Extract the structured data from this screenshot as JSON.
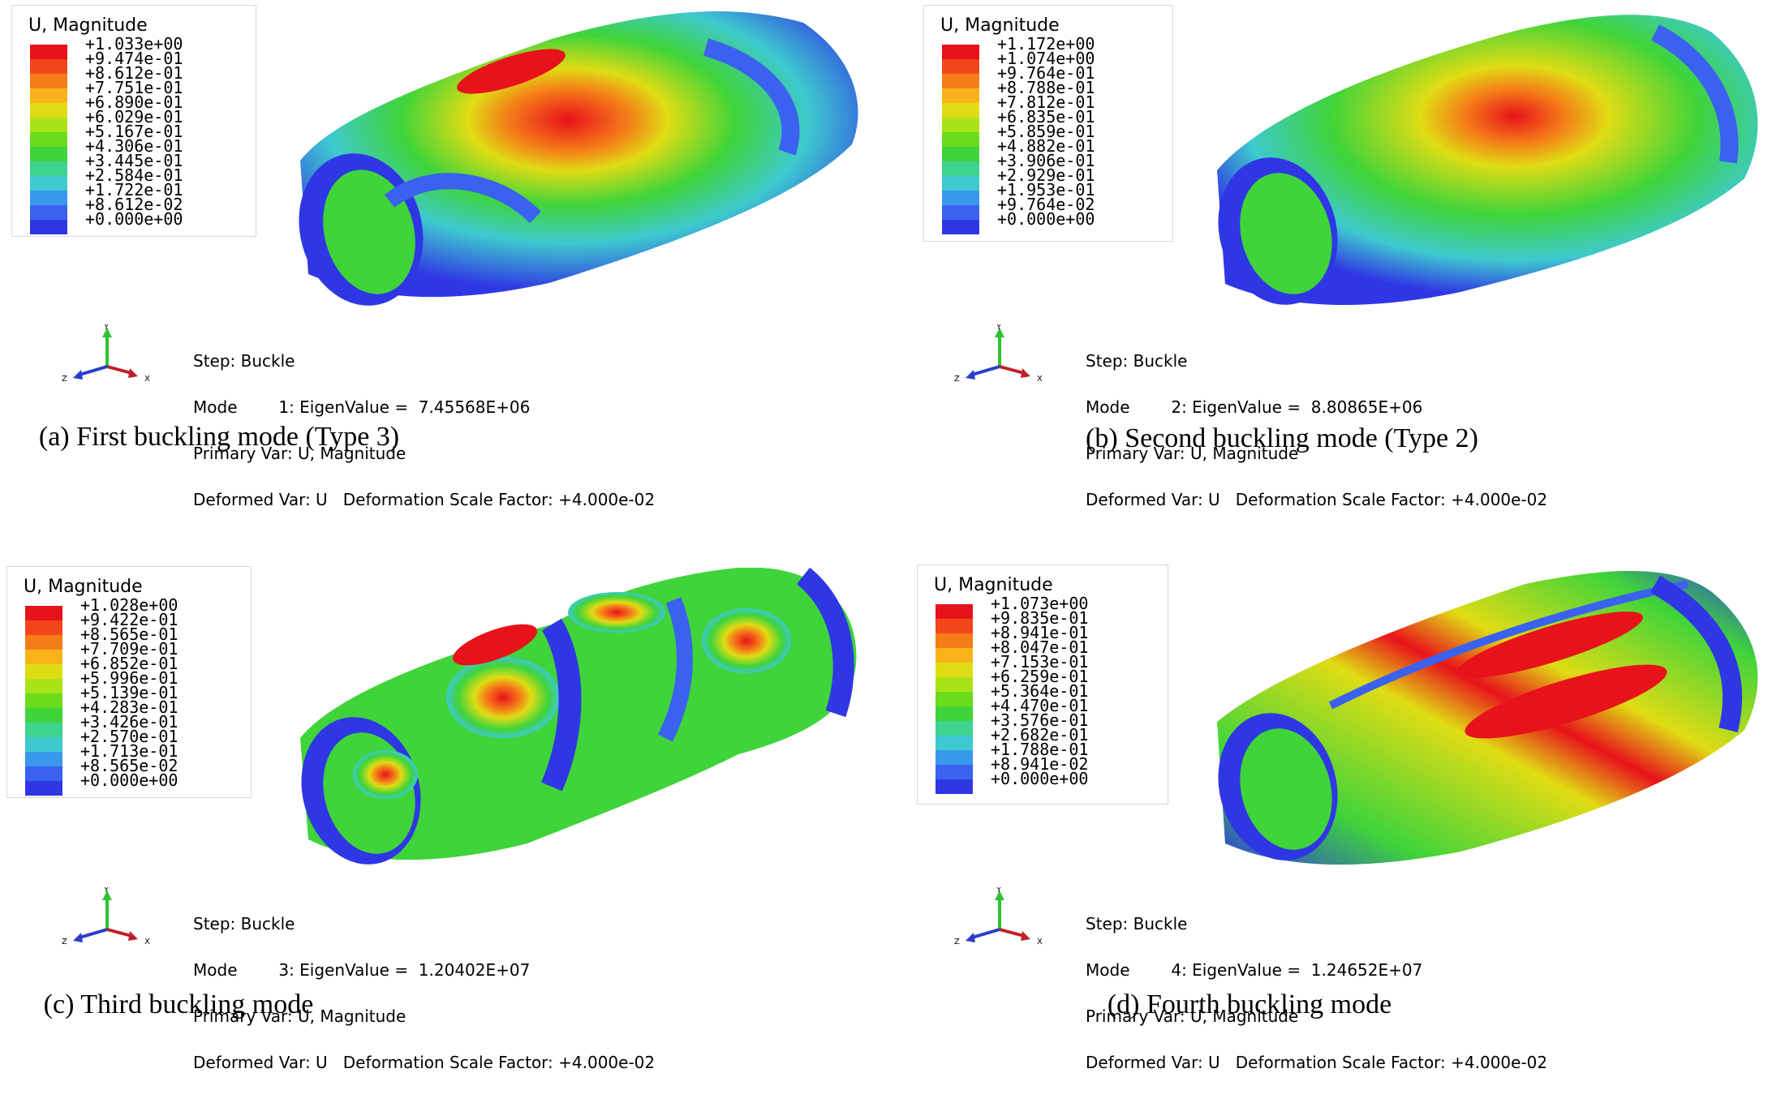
{
  "panels": [
    {
      "id": "a",
      "legend_title": "U, Magnitude",
      "legend_values": [
        "+1.033e+00",
        "+9.474e-01",
        "+8.612e-01",
        "+7.751e-01",
        "+6.890e-01",
        "+6.029e-01",
        "+5.167e-01",
        "+4.306e-01",
        "+3.445e-01",
        "+2.584e-01",
        "+1.722e-01",
        "+8.612e-02",
        "+0.000e+00"
      ],
      "step": "Step: Buckle",
      "mode": "Mode        1: EigenValue =  7.45568E+06",
      "primary": "Primary Var: U, Magnitude",
      "deformed": "Deformed Var: U   Deformation Scale Factor: +4.000e-02",
      "caption": "(a) First buckling mode (Type 3)"
    },
    {
      "id": "b",
      "legend_title": "U, Magnitude",
      "legend_values": [
        "+1.172e+00",
        "+1.074e+00",
        "+9.764e-01",
        "+8.788e-01",
        "+7.812e-01",
        "+6.835e-01",
        "+5.859e-01",
        "+4.882e-01",
        "+3.906e-01",
        "+2.929e-01",
        "+1.953e-01",
        "+9.764e-02",
        "+0.000e+00"
      ],
      "step": "Step: Buckle",
      "mode": "Mode        2: EigenValue =  8.80865E+06",
      "primary": "Primary Var: U, Magnitude",
      "deformed": "Deformed Var: U   Deformation Scale Factor: +4.000e-02",
      "caption": "(b) Second buckling mode (Type 2)"
    },
    {
      "id": "c",
      "legend_title": "U, Magnitude",
      "legend_values": [
        "+1.028e+00",
        "+9.422e-01",
        "+8.565e-01",
        "+7.709e-01",
        "+6.852e-01",
        "+5.996e-01",
        "+5.139e-01",
        "+4.283e-01",
        "+3.426e-01",
        "+2.570e-01",
        "+1.713e-01",
        "+8.565e-02",
        "+0.000e+00"
      ],
      "step": "Step: Buckle",
      "mode": "Mode        3: EigenValue =  1.20402E+07",
      "primary": "Primary Var: U, Magnitude",
      "deformed": "Deformed Var: U   Deformation Scale Factor: +4.000e-02",
      "caption": "(c) Third buckling mode"
    },
    {
      "id": "d",
      "legend_title": "U, Magnitude",
      "legend_values": [
        "+1.073e+00",
        "+9.835e-01",
        "+8.941e-01",
        "+8.047e-01",
        "+7.153e-01",
        "+6.259e-01",
        "+5.364e-01",
        "+4.470e-01",
        "+3.576e-01",
        "+2.682e-01",
        "+1.788e-01",
        "+8.941e-02",
        "+0.000e+00"
      ],
      "step": "Step: Buckle",
      "mode": "Mode        4: EigenValue =  1.24652E+07",
      "primary": "Primary Var: U, Magnitude",
      "deformed": "Deformed Var: U   Deformation Scale Factor: +4.000e-02",
      "caption": "(d) Fourth buckling mode"
    }
  ],
  "colormap": [
    "#e8121b",
    "#f2461a",
    "#f57d18",
    "#f7b317",
    "#e0dc14",
    "#a8e415",
    "#6bdc1a",
    "#3fd43a",
    "#3ed38f",
    "#3ec9cf",
    "#3a98ec",
    "#3a62ef",
    "#2f37e4"
  ],
  "axis_labels": {
    "y": "Y",
    "z": "Z",
    "x": "X"
  }
}
